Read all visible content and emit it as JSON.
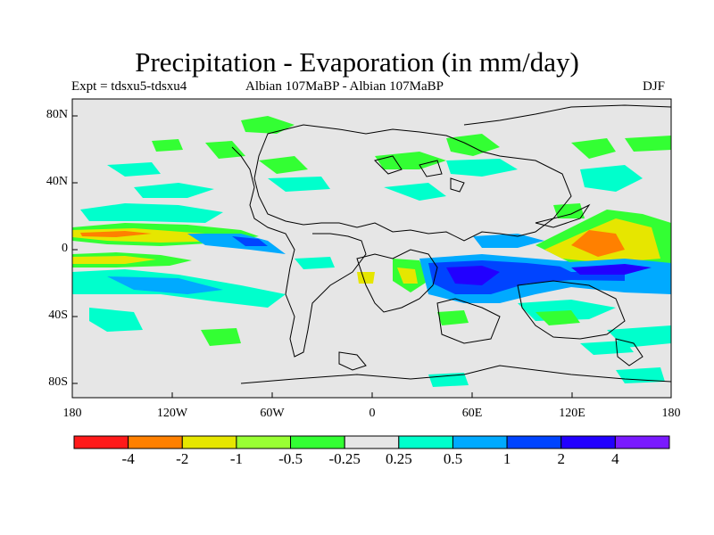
{
  "header": {
    "title": "Precipitation - Evaporation (in mm/day)",
    "left_label": "Expt = tdsxu5-tdsxu4",
    "center_label": "Albian   107MaBP - Albian   107MaBP",
    "right_label": "DJF"
  },
  "axes": {
    "lat_ticks": [
      "80N",
      "40N",
      "0",
      "40S",
      "80S"
    ],
    "lon_ticks": [
      "180",
      "120W",
      "60W",
      "0",
      "60E",
      "120E",
      "180"
    ]
  },
  "legend": {
    "colors": [
      "#ff1a1a",
      "#ff8000",
      "#e6e600",
      "#99ff33",
      "#33ff33",
      "#e6e6e6",
      "#00ffcc",
      "#00aaff",
      "#0044ff",
      "#2200ff",
      "#7a1aff"
    ],
    "labels": [
      "-4",
      "-2",
      "-1",
      "-0.5",
      "-0.25",
      "0.25",
      "0.5",
      "1",
      "2",
      "4"
    ]
  },
  "map_colors": {
    "background": "#e6e6e6",
    "coastline": "#000000"
  }
}
